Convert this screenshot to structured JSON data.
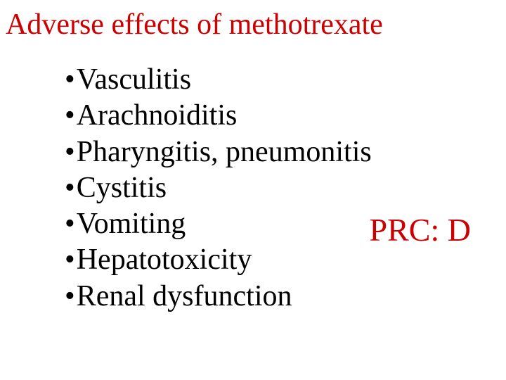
{
  "slide": {
    "title": "Adverse effects of methotrexate",
    "title_color": "#cc0000",
    "title_fontsize": 42,
    "bullets": [
      "Vasculitis",
      "Arachnoiditis",
      "Pharyngitis, pneumonitis",
      "Cystitis",
      "Vomiting",
      "Hepatotoxicity",
      "Renal dysfunction"
    ],
    "bullet_color": "#000000",
    "bullet_fontsize": 42,
    "bullet_marker": "•",
    "callout": "PRC: D",
    "callout_color": "#cc0000",
    "callout_fontsize": 46,
    "background_color": "#ffffff",
    "font_family": "Times New Roman"
  }
}
